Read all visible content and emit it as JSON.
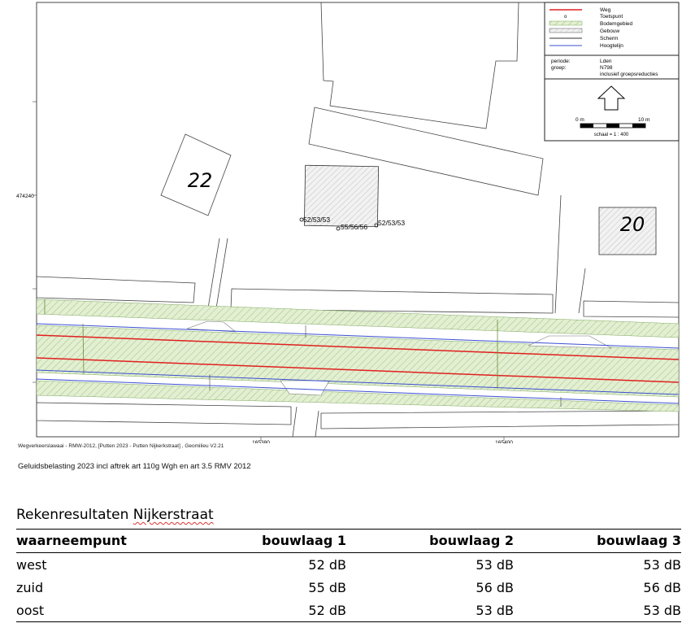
{
  "map": {
    "legend": {
      "items": [
        {
          "label": "Weg",
          "symbol": "red-line",
          "color": "#e02020"
        },
        {
          "label": "Toetspunt",
          "symbol": "point-icon"
        },
        {
          "label": "Bodemgebied",
          "symbol": "hatched-green-box",
          "color": "#cfe3b4"
        },
        {
          "label": "Gebouw",
          "symbol": "hatched-box"
        },
        {
          "label": "Scherm",
          "symbol": "dark-line"
        },
        {
          "label": "Hoogtelijn",
          "symbol": "blue-line",
          "color": "#3a4fd0"
        }
      ],
      "periode_label": "periode:",
      "periode_value": "Lden",
      "groep_label": "groep:",
      "groep_value": "N798",
      "groep_note": "inclusief groepsreducties",
      "scale_start": "0 m",
      "scale_end": "10 m",
      "scale_text": "schaal = 1 : 400"
    },
    "building_labels": {
      "left": "22",
      "right": "20"
    },
    "test_points": {
      "west": "52/53/53",
      "zuid": "55/56/56",
      "oost": "52/53/53"
    },
    "coordinates": {
      "y_tick": "474240",
      "x_tick_1": "165380",
      "x_tick_2": "165400"
    }
  },
  "footer": {
    "source_line": "Wegverkeerslawaai - RMW-2012, [Putten 2023 - Putten Nijkerkstraat] , Geomilieu V2.21",
    "caption": "Geluidsbelasting 2023 incl aftrek art 110g Wgh en art 3.5 RMV 2012"
  },
  "results": {
    "title_prefix": "Rekenresultaten",
    "title_street": "Nijkerstraat",
    "headers": [
      "waarneempunt",
      "bouwlaag 1",
      "bouwlaag 2",
      "bouwlaag 3"
    ],
    "rows": [
      [
        "west",
        "52 dB",
        "53 dB",
        "53 dB"
      ],
      [
        "zuid",
        "55 dB",
        "56 dB",
        "56 dB"
      ],
      [
        "oost",
        "52 dB",
        "53 dB",
        "53 dB"
      ]
    ]
  }
}
